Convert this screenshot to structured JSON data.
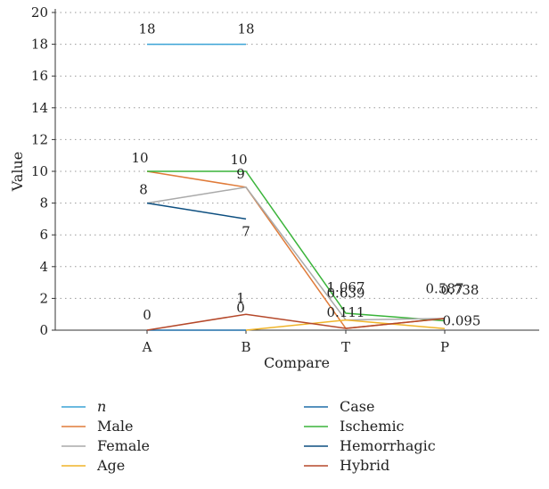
{
  "chart_data": {
    "type": "line",
    "categories": [
      "A",
      "B",
      "T",
      "P"
    ],
    "xlabel": "Compare",
    "ylabel": "Value",
    "ylim": [
      0,
      20
    ],
    "yticks": [
      "0",
      "2",
      "4",
      "6",
      "8",
      "10",
      "12",
      "14",
      "16",
      "18",
      "20"
    ],
    "grid": "horizontal-dotted",
    "legend_position": "bottom",
    "series": [
      {
        "name": "n",
        "color": "#3aa3d6",
        "italic": true,
        "points": [
          {
            "x": "A",
            "y": 18
          },
          {
            "x": "B",
            "y": 18
          }
        ]
      },
      {
        "name": "Case",
        "color": "#1f6fa8",
        "points": [
          {
            "x": "A",
            "y": 0
          },
          {
            "x": "B",
            "y": 0
          }
        ]
      },
      {
        "name": "Male",
        "color": "#e07b39",
        "points": [
          {
            "x": "A",
            "y": 10
          },
          {
            "x": "B",
            "y": 9
          },
          {
            "x": "T",
            "y": 0.111
          },
          {
            "x": "P",
            "y": 0.738
          }
        ]
      },
      {
        "name": "Ischemic",
        "color": "#3ab43a",
        "points": [
          {
            "x": "A",
            "y": 10
          },
          {
            "x": "B",
            "y": 10
          },
          {
            "x": "T",
            "y": 1.067
          },
          {
            "x": "P",
            "y": 0.587
          }
        ]
      },
      {
        "name": "Female",
        "color": "#aaaaaa",
        "points": [
          {
            "x": "A",
            "y": 8
          },
          {
            "x": "B",
            "y": 9
          },
          {
            "x": "T",
            "y": 0.639
          },
          {
            "x": "P",
            "y": 0.738
          }
        ]
      },
      {
        "name": "Hemorrhagic",
        "color": "#0d4f80",
        "points": [
          {
            "x": "A",
            "y": 8
          },
          {
            "x": "B",
            "y": 7
          }
        ]
      },
      {
        "name": "Age",
        "color": "#f0b429",
        "points": [
          {
            "x": "B",
            "y": 0
          },
          {
            "x": "T",
            "y": 0.639
          },
          {
            "x": "P",
            "y": 0.095
          }
        ]
      },
      {
        "name": "Hybrid",
        "color": "#b5482a",
        "points": [
          {
            "x": "A",
            "y": 0
          },
          {
            "x": "B",
            "y": 1
          },
          {
            "x": "T",
            "y": 0.111
          },
          {
            "x": "P",
            "y": 0.738
          }
        ]
      }
    ],
    "data_labels": [
      {
        "text": "18",
        "x": "A",
        "y": 18
      },
      {
        "text": "18",
        "x": "B",
        "y": 18
      },
      {
        "text": "10",
        "x": "A",
        "y": 10
      },
      {
        "text": "10",
        "x": "B",
        "y": 10
      },
      {
        "text": "9",
        "x": "B",
        "y": 9
      },
      {
        "text": "8",
        "x": "A",
        "y": 8
      },
      {
        "text": "7",
        "x": "B",
        "y": 7
      },
      {
        "text": "0",
        "x": "A",
        "y": 0
      },
      {
        "text": "1",
        "x": "B",
        "y": 1
      },
      {
        "text": "0",
        "x": "B",
        "y": 0
      },
      {
        "text": "1.067",
        "x": "T",
        "y": 1.067
      },
      {
        "text": "0.639",
        "x": "T",
        "y": 0.639
      },
      {
        "text": "0.111",
        "x": "T",
        "y": 0.111
      },
      {
        "text": "0.587",
        "x": "P",
        "y": 0.587
      },
      {
        "text": "0.738",
        "x": "P",
        "y": 0.738
      },
      {
        "text": "0.095",
        "x": "P",
        "y": 0.095
      }
    ]
  }
}
